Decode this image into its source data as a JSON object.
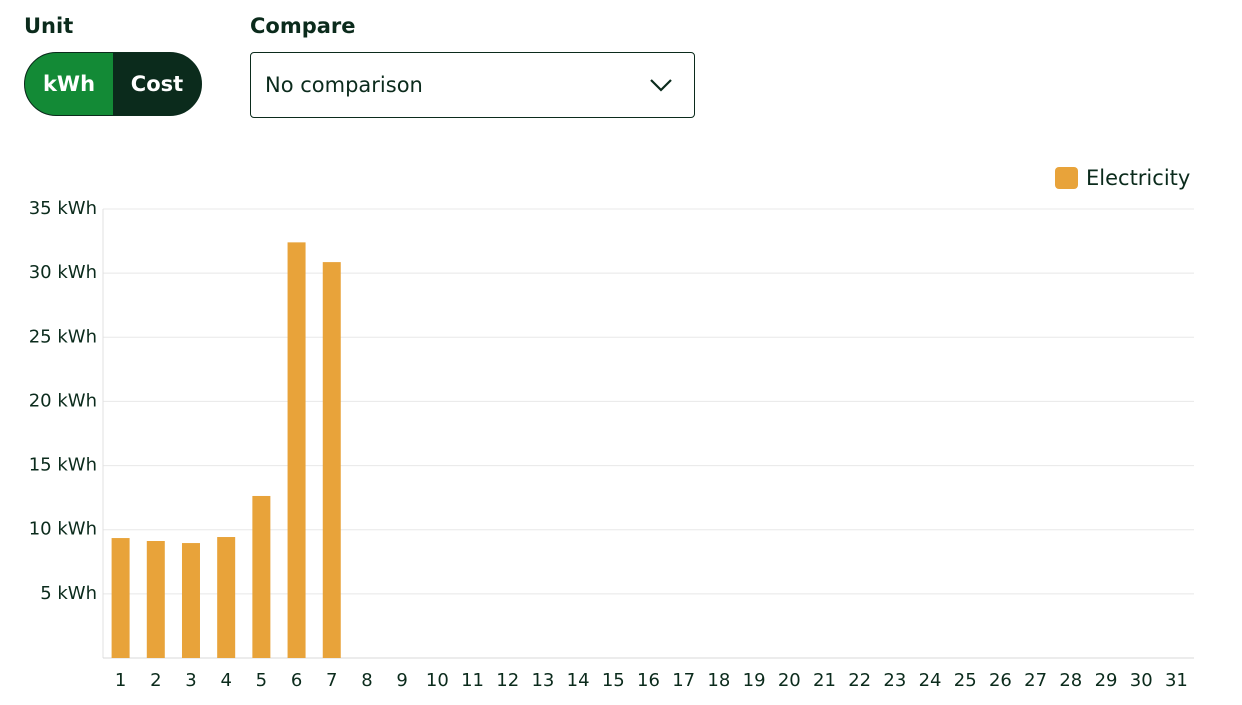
{
  "controls": {
    "unit_label": "Unit",
    "unit_options": [
      "kWh",
      "Cost"
    ],
    "compare_label": "Compare",
    "compare_value": "No comparison"
  },
  "chart_data": {
    "type": "bar",
    "categories": [
      "1",
      "2",
      "3",
      "4",
      "5",
      "6",
      "7",
      "8",
      "9",
      "10",
      "11",
      "12",
      "13",
      "14",
      "15",
      "16",
      "17",
      "18",
      "19",
      "20",
      "21",
      "22",
      "23",
      "24",
      "25",
      "26",
      "27",
      "28",
      "29",
      "30",
      "31"
    ],
    "series": [
      {
        "name": "Electricity",
        "color": "#e8a33a",
        "values": [
          9.35,
          9.12,
          8.96,
          9.43,
          12.63,
          32.4,
          30.86,
          null,
          null,
          null,
          null,
          null,
          null,
          null,
          null,
          null,
          null,
          null,
          null,
          null,
          null,
          null,
          null,
          null,
          null,
          null,
          null,
          null,
          null,
          null,
          null
        ]
      }
    ],
    "ylim": [
      0,
      35
    ],
    "yticks": [
      {
        "value": 5,
        "label": "5 kWh"
      },
      {
        "value": 10,
        "label": "10 kWh"
      },
      {
        "value": 15,
        "label": "15 kWh"
      },
      {
        "value": 20,
        "label": "20 kWh"
      },
      {
        "value": 25,
        "label": "25 kWh"
      },
      {
        "value": 30,
        "label": "30 kWh"
      },
      {
        "value": 35,
        "label": "35 kWh"
      }
    ],
    "grid": true,
    "legend": "top-right"
  }
}
